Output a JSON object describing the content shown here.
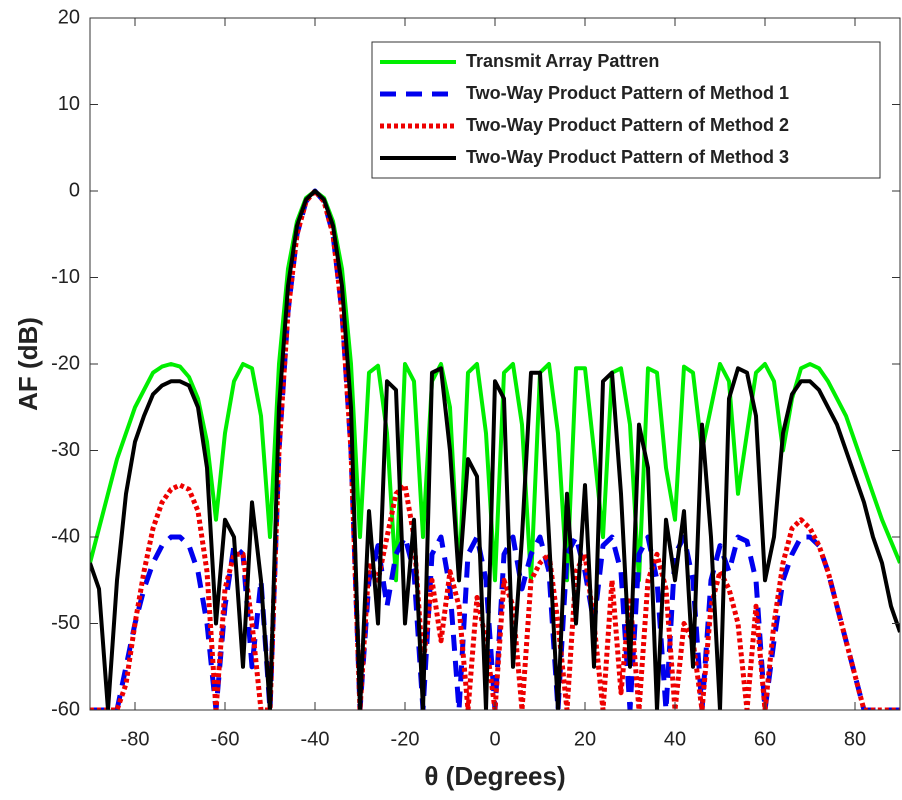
{
  "chart_data": {
    "type": "line",
    "xlabel": "θ (Degrees)",
    "ylabel": "AF (dB)",
    "xlim": [
      -90,
      90
    ],
    "ylim": [
      -60,
      20
    ],
    "xticks": [
      -80,
      -60,
      -40,
      -20,
      0,
      20,
      40,
      60,
      80
    ],
    "yticks": [
      -60,
      -50,
      -40,
      -30,
      -20,
      -10,
      0,
      10,
      20
    ],
    "legend": "upper right",
    "x": [
      -90,
      -88,
      -86,
      -84,
      -82,
      -80,
      -78,
      -76,
      -74,
      -72,
      -70,
      -68,
      -66,
      -64,
      -62,
      -60,
      -58,
      -56,
      -54,
      -52,
      -50,
      -48,
      -46,
      -44,
      -42,
      -40,
      -38,
      -36,
      -34,
      -32,
      -30,
      -28,
      -26,
      -24,
      -22,
      -20,
      -18,
      -16,
      -14,
      -12,
      -10,
      -8,
      -6,
      -4,
      -2,
      0,
      2,
      4,
      6,
      8,
      10,
      12,
      14,
      16,
      18,
      20,
      22,
      24,
      26,
      28,
      30,
      32,
      34,
      36,
      38,
      40,
      42,
      44,
      46,
      48,
      50,
      52,
      54,
      56,
      58,
      60,
      62,
      64,
      66,
      68,
      70,
      72,
      74,
      76,
      78,
      80,
      82,
      84,
      86,
      88,
      90
    ],
    "series": [
      {
        "name": "Transmit Array Pattren",
        "color": "#00ee00",
        "style": "solid",
        "values": [
          -43,
          -39,
          -35,
          -31,
          -28,
          -25,
          -23,
          -21,
          -20.3,
          -20,
          -20.3,
          -21.5,
          -24,
          -29,
          -38,
          -28,
          -22,
          -20,
          -20.5,
          -26,
          -40,
          -20,
          -9,
          -3.5,
          -0.8,
          0,
          -0.8,
          -3.5,
          -9,
          -20,
          -40,
          -21,
          -20.2,
          -28,
          -45,
          -20,
          -22,
          -40,
          -22,
          -20,
          -25,
          -45,
          -21,
          -20,
          -28,
          -45,
          -21,
          -20,
          -27,
          -45,
          -21,
          -20,
          -28,
          -45,
          -20.5,
          -20.5,
          -30,
          -40,
          -21,
          -20.5,
          -27,
          -45,
          -20.5,
          -21,
          -32,
          -38,
          -20.3,
          -21,
          -30,
          -25,
          -20,
          -22,
          -35,
          -28,
          -21,
          -20,
          -22,
          -30,
          -24,
          -20.5,
          -20,
          -20.5,
          -22,
          -24,
          -26,
          -29,
          -32,
          -35,
          -38,
          -40.5,
          -43
        ]
      },
      {
        "name": "Two-Way Product Pattern of Method 1",
        "color": "#0000ee",
        "style": "dashed",
        "values": [
          -60,
          -60,
          -60,
          -60,
          -55,
          -50,
          -46,
          -43,
          -41,
          -40,
          -40,
          -41,
          -44,
          -50,
          -60,
          -48,
          -41,
          -42,
          -55,
          -45,
          -60,
          -30,
          -14,
          -5,
          -1.2,
          0,
          -1.2,
          -5,
          -14,
          -30,
          -60,
          -45,
          -41,
          -48,
          -42,
          -40,
          -44,
          -60,
          -42,
          -40,
          -46,
          -60,
          -42,
          -40,
          -45,
          -60,
          -42,
          -40,
          -46,
          -42,
          -40,
          -44,
          -60,
          -42,
          -40,
          -44,
          -50,
          -41,
          -40,
          -44,
          -60,
          -42,
          -40,
          -45,
          -60,
          -42,
          -40,
          -45,
          -60,
          -45,
          -41,
          -44,
          -40,
          -40.5,
          -45,
          -60,
          -52,
          -45,
          -42,
          -40,
          -40,
          -41,
          -44,
          -48,
          -52,
          -56,
          -60,
          -60,
          -60,
          -60,
          -60
        ]
      },
      {
        "name": "Two-Way Product Pattern of Method 2",
        "color": "#ee0000",
        "style": "dotted",
        "values": [
          -60,
          -60,
          -60,
          -60,
          -57,
          -50,
          -44,
          -39,
          -36,
          -34.5,
          -34,
          -34.5,
          -37,
          -44,
          -60,
          -46,
          -42,
          -42,
          -50,
          -60,
          -60,
          -30,
          -14,
          -5,
          -1.2,
          0,
          -1.2,
          -5,
          -14,
          -30,
          -60,
          -43,
          -45,
          -40,
          -35,
          -34,
          -40,
          -55,
          -45,
          -52,
          -44,
          -48,
          -60,
          -47,
          -52,
          -60,
          -45,
          -48,
          -60,
          -45,
          -43,
          -42,
          -50,
          -60,
          -44,
          -42,
          -50,
          -60,
          -45,
          -58,
          -47,
          -60,
          -45,
          -42,
          -46,
          -60,
          -50,
          -52,
          -60,
          -48,
          -44,
          -46,
          -50,
          -60,
          -48,
          -60,
          -50,
          -43,
          -39,
          -38,
          -39,
          -41,
          -44,
          -48,
          -52,
          -56,
          -60,
          -60,
          -60,
          -60,
          -60
        ]
      },
      {
        "name": "Two-Way Product Pattern of Method 3",
        "color": "#000000",
        "style": "solid",
        "values": [
          -43,
          -46,
          -60,
          -45,
          -35,
          -29,
          -26,
          -23.5,
          -22.5,
          -22,
          -22,
          -22.5,
          -25,
          -32,
          -50,
          -38,
          -40,
          -55,
          -36,
          -45,
          -60,
          -25,
          -11,
          -4,
          -1,
          0,
          -1,
          -4,
          -11,
          -25,
          -60,
          -37,
          -50,
          -22,
          -23,
          -50,
          -38,
          -60,
          -21,
          -20.5,
          -30,
          -45,
          -31,
          -33,
          -60,
          -22,
          -24,
          -55,
          -40,
          -21,
          -21,
          -40,
          -60,
          -35,
          -50,
          -34,
          -55,
          -22,
          -21,
          -35,
          -55,
          -27,
          -32,
          -60,
          -38,
          -45,
          -37,
          -55,
          -27,
          -40,
          -60,
          -24,
          -20.5,
          -21,
          -26,
          -45,
          -40,
          -28,
          -23.5,
          -22,
          -22,
          -23,
          -25,
          -27,
          -30,
          -33,
          -36,
          -40,
          -43,
          -48,
          -51
        ]
      }
    ]
  }
}
